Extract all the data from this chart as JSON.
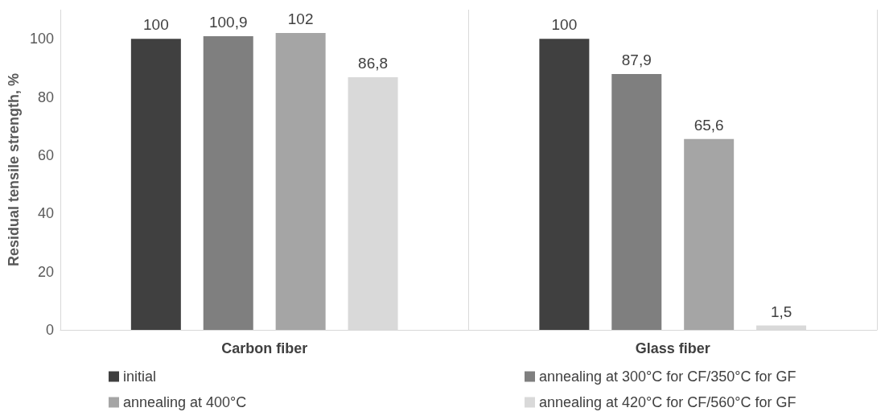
{
  "chart_data": {
    "type": "bar",
    "ylabel": "Residual tensile strength, %",
    "categories": [
      "Carbon fiber",
      "Glass fiber"
    ],
    "series": [
      {
        "name": "initial",
        "color": "#404040",
        "values": [
          100,
          100
        ],
        "value_labels": [
          "100",
          "100"
        ]
      },
      {
        "name": "annealing at 300°C for CF/350°C for GF",
        "color": "#7f7f7f",
        "values": [
          100.9,
          87.9
        ],
        "value_labels": [
          "100,9",
          "87,9"
        ]
      },
      {
        "name": "annealing at 400°C",
        "color": "#a5a5a5",
        "values": [
          102,
          65.6
        ],
        "value_labels": [
          "102",
          "65,6"
        ]
      },
      {
        "name": "annealing at 420°C for CF/560°C for GF",
        "color": "#d9d9d9",
        "values": [
          86.8,
          1.5
        ],
        "value_labels": [
          "86,8",
          "1,5"
        ]
      }
    ],
    "ylim": [
      0,
      110
    ],
    "yticks": [
      0,
      20,
      40,
      60,
      80,
      100
    ],
    "grid": "x",
    "legend": "bottom"
  }
}
